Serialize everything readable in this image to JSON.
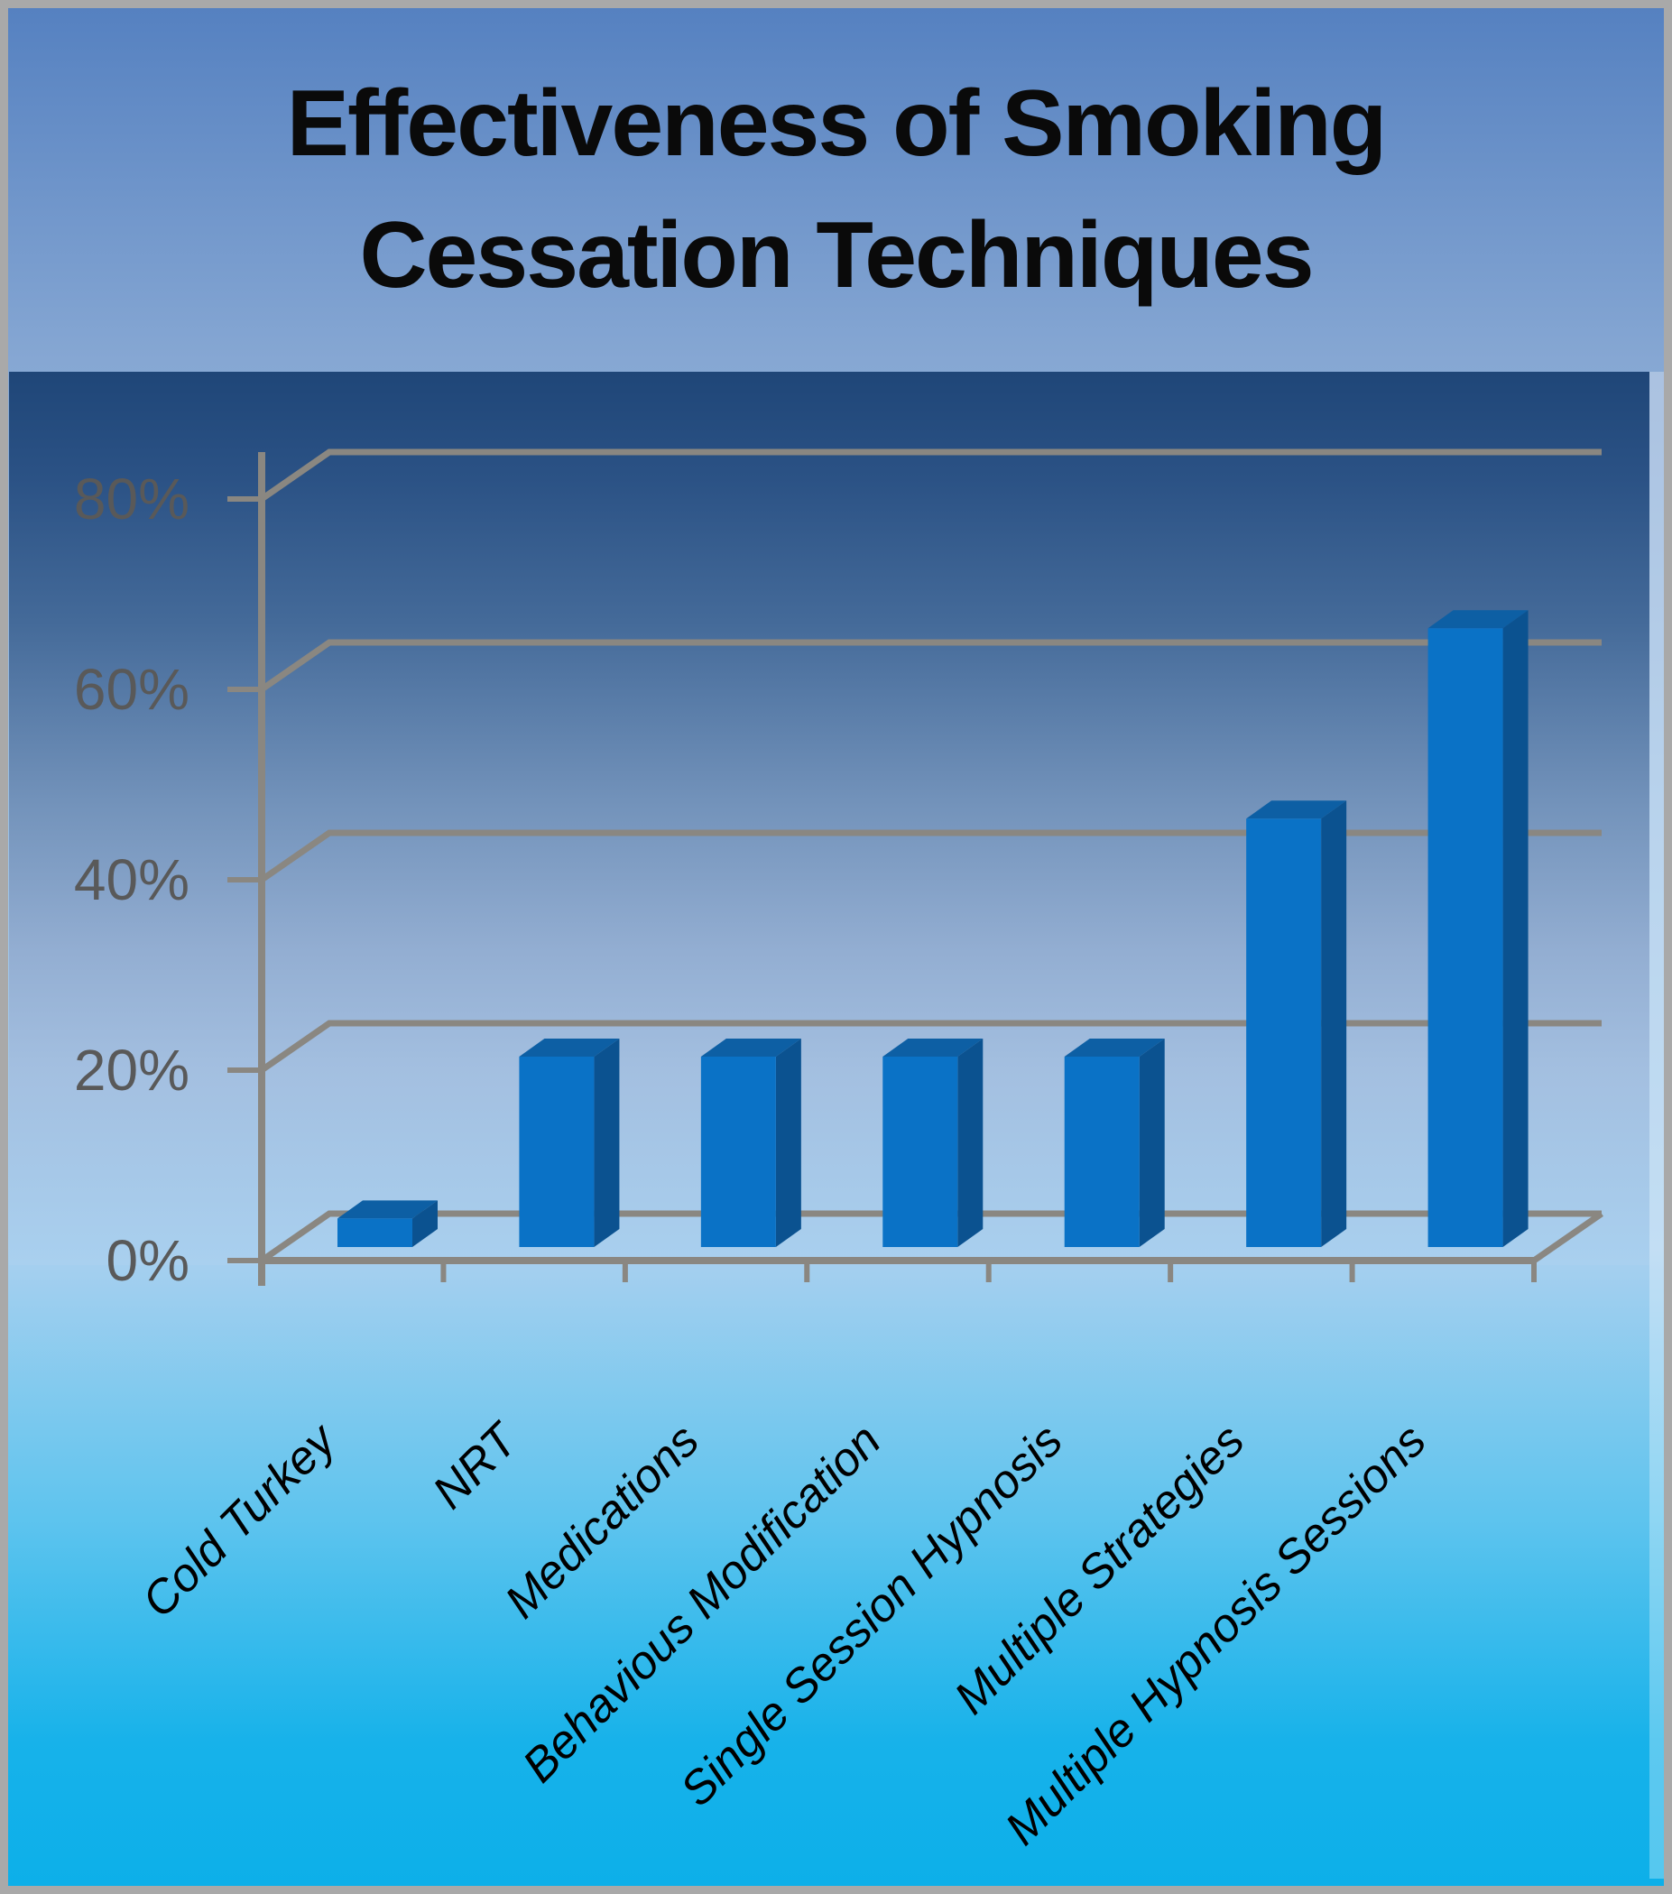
{
  "title": {
    "line1": "Effectiveness of Smoking",
    "line2": "Cessation Techniques"
  },
  "chart_data": {
    "type": "bar",
    "projection": "3d-column",
    "title": "Effectiveness of Smoking Cessation Techniques",
    "categories": [
      "Cold Turkey",
      "NRT",
      "Medications",
      "Behavious Modification",
      "Single Session Hypnosis",
      "Multiple Strategies",
      "Multiple Hypnosis Sessions"
    ],
    "values": [
      3,
      20,
      20,
      20,
      20,
      45,
      65
    ],
    "unit": "%",
    "xlabel": "",
    "ylabel": "",
    "ytick_values": [
      0,
      20,
      40,
      60,
      80
    ],
    "ytick_labels": [
      "0%",
      "20%",
      "40%",
      "60%",
      "80%"
    ],
    "ylim": [
      0,
      90
    ],
    "grid": true,
    "legend": false,
    "colors": {
      "bar_front": "#0a72c6",
      "bar_top": "#0d5fa4",
      "bar_side": "#0b5290",
      "gridline": "#8a8781",
      "axis": "#8a8781",
      "tick_label": "#595959",
      "category_label": "#000000",
      "title": "#0a0a0a",
      "border": "#a9a9a9",
      "bg_top": "#5480c0",
      "bg_bottom": "#0cafe9",
      "plot_top": "#1f4678",
      "plot_bottom": "#a9d0ef"
    }
  }
}
